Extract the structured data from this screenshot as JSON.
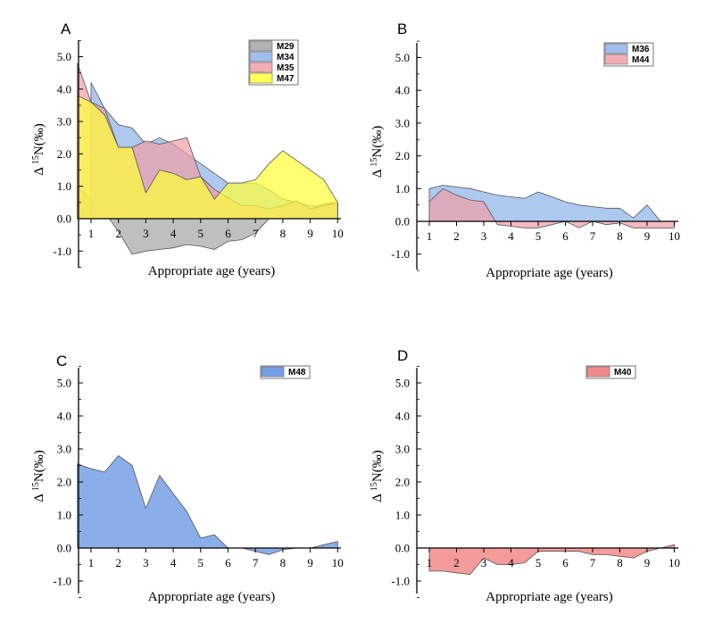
{
  "chart_data": [
    {
      "panel": "A",
      "type": "area",
      "xlabel": "Appropriate age (years)",
      "ylabel_prefix": "Δ",
      "ylabel_sup": "15",
      "ylabel_suffix": "N(‰)",
      "xlim": [
        0.5,
        10
      ],
      "ylim": [
        -1.5,
        5.5
      ],
      "xticks": [
        1,
        2,
        3,
        4,
        5,
        6,
        7,
        8,
        9,
        10
      ],
      "xtick_labels": [
        "1",
        "2",
        "3",
        "4",
        "5",
        "6",
        "7",
        "8",
        "9",
        "10"
      ],
      "yticks": [
        -1,
        0,
        1,
        2,
        3,
        4,
        5
      ],
      "ytick_labels": [
        "-1.0",
        "0.0",
        "1.0",
        "2.0",
        "3.0",
        "4.0",
        "5.0"
      ],
      "legend_position": "top-right",
      "series": [
        {
          "name": "M29",
          "color": "#a6a6a6",
          "x": [
            0.5,
            1,
            1.5,
            2,
            2.5,
            3,
            3.5,
            4,
            4.5,
            5,
            5.5,
            6,
            6.5,
            7,
            7.5,
            8,
            8.5,
            9,
            9.5,
            10
          ],
          "y": [
            1.0,
            0.6,
            0.2,
            -0.4,
            -1.1,
            -1.0,
            -0.95,
            -0.9,
            -0.8,
            -0.85,
            -0.95,
            -0.7,
            -0.65,
            -0.45,
            0.0,
            0.1,
            0.2,
            0.3,
            0.45,
            0.5
          ]
        },
        {
          "name": "M34",
          "color": "#8fb4ea",
          "x": [
            1,
            1.5,
            2,
            2.5,
            3,
            3.5,
            4,
            4.5,
            5,
            5.5,
            6,
            6.5,
            7,
            7.5,
            8,
            8.5,
            9,
            9.5,
            10
          ],
          "y": [
            4.2,
            3.4,
            2.9,
            2.8,
            2.3,
            2.5,
            2.3,
            2.0,
            1.7,
            1.4,
            1.1,
            1.1,
            1.1,
            0.9,
            0.6,
            0.5,
            0.4,
            0.4,
            0.5
          ]
        },
        {
          "name": "M35",
          "color": "#f0a0a8",
          "x": [
            0.5,
            1,
            1.5,
            2,
            2.5,
            3,
            3.5,
            4,
            4.5,
            5,
            5.5,
            6,
            6.5,
            7,
            7.5,
            8,
            8.5,
            9,
            9.5,
            10
          ],
          "y": [
            4.8,
            3.6,
            3.4,
            2.2,
            2.2,
            2.4,
            2.3,
            2.4,
            2.5,
            1.3,
            0.9,
            0.65,
            0.4,
            0.4,
            0.3,
            0.4,
            0.55,
            0.3,
            0.4,
            0.5
          ]
        },
        {
          "name": "M47",
          "color": "#ffff3a",
          "x": [
            0.5,
            1,
            1.5,
            2,
            2.5,
            3,
            3.5,
            4,
            4.5,
            5,
            5.5,
            6,
            6.5,
            7,
            7.5,
            8,
            8.5,
            9,
            9.5,
            10
          ],
          "y": [
            3.8,
            3.6,
            3.2,
            2.2,
            2.2,
            0.8,
            1.5,
            1.4,
            1.2,
            1.3,
            0.6,
            1.1,
            1.1,
            1.2,
            1.7,
            2.1,
            1.8,
            1.5,
            1.2,
            0.5
          ]
        }
      ]
    },
    {
      "panel": "B",
      "type": "area",
      "xlabel": "Appropriate age (years)",
      "ylabel_prefix": "Δ",
      "ylabel_sup": "15",
      "ylabel_suffix": "N(‰)",
      "xlim": [
        1,
        10
      ],
      "ylim": [
        -1.5,
        5.5
      ],
      "xticks": [
        1,
        2,
        3,
        4,
        5,
        6,
        7,
        8,
        9,
        10
      ],
      "xtick_labels": [
        "1",
        "2",
        "3",
        "4",
        "5",
        "6",
        "7",
        "8",
        "9",
        "10"
      ],
      "yticks": [
        -1,
        0,
        1,
        2,
        3,
        4,
        5
      ],
      "ytick_labels": [
        "-1.0",
        "0.0",
        "1.0",
        "2.0",
        "3.0",
        "4.0",
        "5.0"
      ],
      "legend_position": "top-right",
      "series": [
        {
          "name": "M36",
          "color": "#8fb4ea",
          "x": [
            1,
            1.5,
            2,
            2.5,
            3,
            3.5,
            4,
            4.5,
            5,
            5.5,
            6,
            6.5,
            7,
            7.5,
            8,
            8.5,
            9,
            9.5
          ],
          "y": [
            1.0,
            1.1,
            1.05,
            1.0,
            0.9,
            0.8,
            0.75,
            0.7,
            0.9,
            0.75,
            0.6,
            0.5,
            0.45,
            0.4,
            0.4,
            0.1,
            0.5,
            0.0
          ]
        },
        {
          "name": "M44",
          "color": "#f0a0a8",
          "x": [
            1,
            1.5,
            2,
            2.5,
            3,
            3.5,
            4,
            4.5,
            5,
            5.5,
            6,
            6.5,
            7,
            7.5,
            8,
            8.5,
            9,
            9.5,
            10
          ],
          "y": [
            0.6,
            1.0,
            0.8,
            0.65,
            0.6,
            -0.1,
            -0.15,
            -0.2,
            -0.2,
            -0.1,
            0.0,
            -0.2,
            0.0,
            -0.1,
            -0.05,
            -0.2,
            -0.2,
            -0.2,
            -0.2
          ]
        }
      ]
    },
    {
      "panel": "C",
      "type": "area",
      "xlabel": "Appropriate age (years)",
      "ylabel_prefix": "Δ",
      "ylabel_sup": "15",
      "ylabel_suffix": "N(‰)",
      "xlim": [
        0.5,
        10
      ],
      "ylim": [
        -1.5,
        5.5
      ],
      "xticks": [
        1,
        2,
        3,
        4,
        5,
        6,
        7,
        8,
        9,
        10
      ],
      "xtick_labels": [
        "1",
        "2",
        "3",
        "4",
        "5",
        "6",
        "7",
        "8",
        "9",
        "10"
      ],
      "yticks": [
        -1,
        0,
        1,
        2,
        3,
        4,
        5
      ],
      "ytick_labels": [
        "-1.0",
        "0.0",
        "1.0",
        "2.0",
        "3.0",
        "4.0",
        "5.0"
      ],
      "legend_position": "top-right",
      "series": [
        {
          "name": "M48",
          "color": "#5b8fe0",
          "x": [
            0.5,
            1,
            1.5,
            2,
            2.5,
            3,
            3.5,
            4,
            4.5,
            5,
            5.5,
            6,
            6.5,
            7,
            7.5,
            8,
            8.5,
            9,
            9.5,
            10
          ],
          "y": [
            2.55,
            2.4,
            2.3,
            2.8,
            2.5,
            1.2,
            2.2,
            1.65,
            1.1,
            0.3,
            0.4,
            0.0,
            0.0,
            -0.1,
            -0.2,
            -0.05,
            0.0,
            0.0,
            0.1,
            0.2
          ]
        }
      ]
    },
    {
      "panel": "D",
      "type": "area",
      "xlabel": "Appropriate age (years)",
      "ylabel_prefix": "Δ",
      "ylabel_sup": "15",
      "ylabel_suffix": "N(‰)",
      "xlim": [
        1,
        10
      ],
      "ylim": [
        -1.5,
        5.5
      ],
      "xticks": [
        1,
        2,
        3,
        4,
        5,
        6,
        7,
        8,
        9,
        10
      ],
      "xtick_labels": [
        "1",
        "2",
        "3",
        "4",
        "5",
        "6",
        "7",
        "8",
        "9",
        "10"
      ],
      "yticks": [
        -1,
        0,
        1,
        2,
        3,
        4,
        5
      ],
      "ytick_labels": [
        "-1.0",
        "0.0",
        "1.0",
        "2.0",
        "3.0",
        "4.0",
        "5.0"
      ],
      "legend_position": "top-right",
      "series": [
        {
          "name": "M40",
          "color": "#f07575",
          "x": [
            1,
            1.5,
            2,
            2.5,
            3,
            3.5,
            4,
            4.5,
            5,
            5.5,
            6,
            6.5,
            7,
            7.5,
            8,
            8.5,
            9,
            9.5,
            10
          ],
          "y": [
            -0.7,
            -0.7,
            -0.75,
            -0.8,
            -0.3,
            -0.5,
            -0.5,
            -0.45,
            -0.1,
            -0.1,
            -0.1,
            -0.1,
            -0.2,
            -0.2,
            -0.25,
            -0.3,
            -0.1,
            0.0,
            0.1
          ]
        }
      ]
    }
  ]
}
